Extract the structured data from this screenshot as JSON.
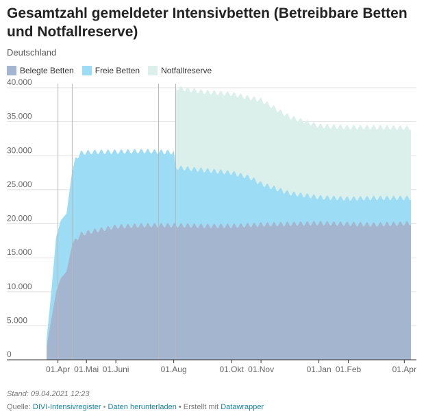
{
  "header": {
    "title": "Gesamtzahl gemeldeter Intensivbetten (Betreibbare Betten und Notfallreserve)",
    "subtitle": "Deutschland"
  },
  "colors": {
    "belegt": "#a3b5cf",
    "frei": "#9ddcf5",
    "notfall": "#dbf0ea",
    "grid": "#e0e0e0",
    "vline": "#b8b8b8"
  },
  "chart_data": {
    "type": "area",
    "stacked": true,
    "x_range": [
      "2020-03-20",
      "2021-04-08"
    ],
    "ylim": [
      0,
      40000
    ],
    "y_ticks": [
      "40.000",
      "35.000",
      "30.000",
      "25.000",
      "20.000",
      "15.000",
      "10.000",
      "5.000",
      "0"
    ],
    "y_tick_values": [
      40000,
      35000,
      30000,
      25000,
      20000,
      15000,
      10000,
      5000,
      0
    ],
    "x_tick_labels": [
      "01.Apr",
      "01.Mai",
      "01.Juni",
      "01.Aug",
      "01.Okt",
      "01.Nov",
      "01.Jan",
      "01.Feb",
      "01.Apr"
    ],
    "x_tick_dates": [
      "2020-04-01",
      "2020-05-01",
      "2020-06-01",
      "2020-08-01",
      "2020-10-01",
      "2020-11-01",
      "2021-01-01",
      "2021-02-01",
      "2021-04-01"
    ],
    "reference_lines": [
      "2020-04-01",
      "2020-04-16",
      "2020-07-16",
      "2020-08-03"
    ],
    "series": [
      {
        "name": "Belegte Betten",
        "points": [
          [
            "2020-03-20",
            2000
          ],
          [
            "2020-03-25",
            6000
          ],
          [
            "2020-03-30",
            10000
          ],
          [
            "2020-04-04",
            12000
          ],
          [
            "2020-04-10",
            13000
          ],
          [
            "2020-04-16",
            17000
          ],
          [
            "2020-04-25",
            18500
          ],
          [
            "2020-05-10",
            19000
          ],
          [
            "2020-06-01",
            19600
          ],
          [
            "2020-07-01",
            19800
          ],
          [
            "2020-08-01",
            19800
          ],
          [
            "2020-09-01",
            19700
          ],
          [
            "2020-10-01",
            19700
          ],
          [
            "2020-11-01",
            19900
          ],
          [
            "2020-12-01",
            20000
          ],
          [
            "2021-01-01",
            20100
          ],
          [
            "2021-02-01",
            20000
          ],
          [
            "2021-03-01",
            19900
          ],
          [
            "2021-04-08",
            20100
          ]
        ]
      },
      {
        "name": "Freie Betten",
        "points": [
          [
            "2020-03-20",
            1000
          ],
          [
            "2020-03-25",
            4000
          ],
          [
            "2020-03-30",
            8000
          ],
          [
            "2020-04-04",
            8500
          ],
          [
            "2020-04-10",
            8500
          ],
          [
            "2020-04-14",
            10000
          ],
          [
            "2020-04-20",
            12000
          ],
          [
            "2020-05-01",
            11800
          ],
          [
            "2020-06-01",
            11000
          ],
          [
            "2020-07-01",
            10900
          ],
          [
            "2020-08-01",
            10700
          ],
          [
            "2020-08-03",
            8500
          ],
          [
            "2020-09-01",
            8200
          ],
          [
            "2020-10-01",
            7800
          ],
          [
            "2020-10-20",
            7000
          ],
          [
            "2020-11-01",
            6000
          ],
          [
            "2020-12-01",
            4500
          ],
          [
            "2021-01-01",
            3800
          ],
          [
            "2021-02-01",
            3700
          ],
          [
            "2021-03-01",
            3900
          ],
          [
            "2021-04-08",
            3700
          ]
        ]
      },
      {
        "name": "Notfallreserve",
        "points": [
          [
            "2020-08-03",
            11700
          ],
          [
            "2020-09-01",
            11500
          ],
          [
            "2020-10-01",
            11600
          ],
          [
            "2020-10-20",
            11700
          ],
          [
            "2020-11-01",
            12300
          ],
          [
            "2020-12-01",
            11200
          ],
          [
            "2021-01-01",
            10500
          ],
          [
            "2021-02-01",
            10500
          ],
          [
            "2021-03-01",
            10400
          ],
          [
            "2021-04-08",
            10300
          ]
        ]
      }
    ]
  },
  "footer": {
    "stand": "Stand: 09.04.2021 12:23",
    "quelle_prefix": "Quelle: ",
    "quelle_link": "DIVI-Intensivregister",
    "sep": " • ",
    "download_link": "Daten herunterladen",
    "erstellt_prefix": " • Erstellt mit ",
    "tool_link": "Datawrapper"
  }
}
